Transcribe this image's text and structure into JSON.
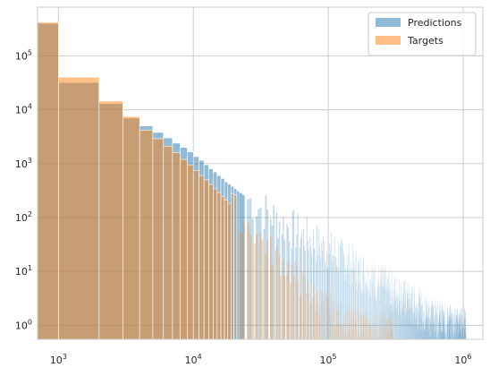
{
  "chart_data": {
    "type": "bar",
    "title": "",
    "xlabel": "",
    "ylabel": "",
    "xscale": "log",
    "yscale": "log",
    "xlim": [
      700,
      1400000
    ],
    "ylim": [
      0.55,
      800000
    ],
    "grid": true,
    "legend_position": "top-right",
    "x_ticks": [
      {
        "value": 1000,
        "base": "10",
        "exp": "3"
      },
      {
        "value": 10000,
        "base": "10",
        "exp": "4"
      },
      {
        "value": 100000,
        "base": "10",
        "exp": "5"
      },
      {
        "value": 1000000,
        "base": "10",
        "exp": "6"
      }
    ],
    "y_ticks": [
      {
        "value": 1,
        "base": "10",
        "exp": "0"
      },
      {
        "value": 10,
        "base": "10",
        "exp": "1"
      },
      {
        "value": 100,
        "base": "10",
        "exp": "2"
      },
      {
        "value": 1000,
        "base": "10",
        "exp": "3"
      },
      {
        "value": 10000,
        "base": "10",
        "exp": "4"
      },
      {
        "value": 100000,
        "base": "10",
        "exp": "5"
      }
    ],
    "bin_width": 1000,
    "bin_start": 0,
    "series": [
      {
        "name": "Predictions",
        "color": "#1f77b4",
        "opacity": 0.5,
        "points": [
          [
            1000,
            400000
          ],
          [
            2000,
            32000
          ],
          [
            3000,
            13000
          ],
          [
            4000,
            7000
          ],
          [
            5000,
            5000
          ],
          [
            6000,
            3800
          ],
          [
            7000,
            3000
          ],
          [
            8000,
            2400
          ],
          [
            9000,
            2000
          ],
          [
            10000,
            1650
          ],
          [
            11000,
            1350
          ],
          [
            12000,
            1150
          ],
          [
            13000,
            950
          ],
          [
            14000,
            800
          ],
          [
            15000,
            700
          ],
          [
            16000,
            600
          ],
          [
            17000,
            530
          ],
          [
            18000,
            460
          ],
          [
            20000,
            380
          ],
          [
            22000,
            310
          ],
          [
            25000,
            240
          ],
          [
            28000,
            190
          ],
          [
            32000,
            150
          ],
          [
            36000,
            120
          ],
          [
            40000,
            100
          ],
          [
            45000,
            82
          ],
          [
            50000,
            68
          ],
          [
            60000,
            52
          ],
          [
            70000,
            42
          ],
          [
            80000,
            35
          ],
          [
            100000,
            25
          ],
          [
            120000,
            19
          ],
          [
            150000,
            13
          ],
          [
            180000,
            9.5
          ],
          [
            220000,
            7
          ],
          [
            270000,
            5
          ],
          [
            330000,
            3.6
          ],
          [
            400000,
            2.6
          ],
          [
            500000,
            1.8
          ],
          [
            600000,
            1.3
          ],
          [
            750000,
            1.0
          ],
          [
            900000,
            0.9
          ],
          [
            1000000,
            0.9
          ]
        ],
        "jitter": 0.4,
        "gap_start": 25000,
        "gap_step": 4
      },
      {
        "name": "Targets",
        "color": "#ff7f0e",
        "opacity": 0.5,
        "points": [
          [
            1000,
            420000
          ],
          [
            2000,
            40000
          ],
          [
            3000,
            14500
          ],
          [
            4000,
            7500
          ],
          [
            5000,
            4200
          ],
          [
            6000,
            2900
          ],
          [
            7000,
            2100
          ],
          [
            8000,
            1600
          ],
          [
            9000,
            1200
          ],
          [
            10000,
            950
          ],
          [
            11000,
            750
          ],
          [
            12000,
            600
          ],
          [
            13000,
            500
          ],
          [
            14000,
            410
          ],
          [
            15000,
            340
          ],
          [
            16000,
            290
          ],
          [
            17000,
            245
          ],
          [
            18000,
            210
          ],
          [
            20000,
            160
          ],
          [
            22000,
            120
          ],
          [
            25000,
            85
          ],
          [
            28000,
            60
          ],
          [
            32000,
            42
          ],
          [
            36000,
            30
          ],
          [
            40000,
            22
          ],
          [
            45000,
            16
          ],
          [
            50000,
            12
          ],
          [
            60000,
            7
          ],
          [
            70000,
            4.5
          ],
          [
            80000,
            3.2
          ],
          [
            100000,
            2.2
          ],
          [
            120000,
            1.6
          ],
          [
            150000,
            1.2
          ],
          [
            200000,
            1.0
          ],
          [
            300000,
            0.9
          ]
        ],
        "jitter": 0.3,
        "gap_start": 20000,
        "gap_step": 3,
        "max_x": 300000
      }
    ]
  }
}
